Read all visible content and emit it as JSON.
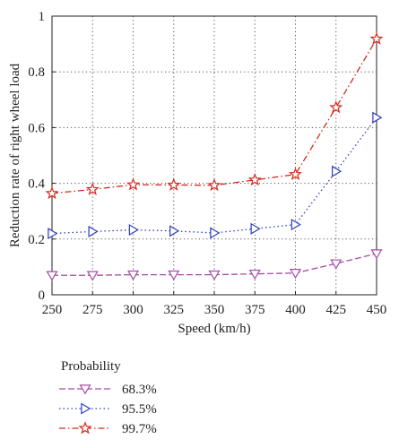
{
  "chart_data": {
    "type": "line",
    "xlabel": "Speed (km/h)",
    "ylabel": "Reduction rate of right wheel load",
    "x": [
      250,
      275,
      300,
      325,
      350,
      375,
      400,
      425,
      450
    ],
    "xlim": [
      250,
      450
    ],
    "ylim": [
      0,
      1
    ],
    "xticks": [
      "250",
      "275",
      "300",
      "325",
      "350",
      "375",
      "400",
      "425",
      "450"
    ],
    "yticks": [
      "0",
      "0.2",
      "0.4",
      "0.6",
      "0.8",
      "1"
    ],
    "yticks_values": [
      0,
      0.2,
      0.4,
      0.6,
      0.8,
      1.0
    ],
    "grid": true,
    "legend": {
      "title": "Probability",
      "placement": "below"
    },
    "series": [
      {
        "name": "68.3%",
        "values": [
          0.07,
          0.07,
          0.072,
          0.072,
          0.072,
          0.075,
          0.078,
          0.112,
          0.148
        ],
        "color": "#a64ca6",
        "dash": "solid-dash",
        "marker": "triangle-down"
      },
      {
        "name": "95.5%",
        "values": [
          0.22,
          0.227,
          0.233,
          0.229,
          0.222,
          0.237,
          0.252,
          0.443,
          0.636
        ],
        "color": "#2e3fbf",
        "dash": "dotted",
        "marker": "triangle-right"
      },
      {
        "name": "99.7%",
        "values": [
          0.364,
          0.378,
          0.395,
          0.394,
          0.393,
          0.412,
          0.432,
          0.672,
          0.918
        ],
        "color": "#d42a1e",
        "dash": "dash-dot",
        "marker": "star"
      }
    ]
  }
}
